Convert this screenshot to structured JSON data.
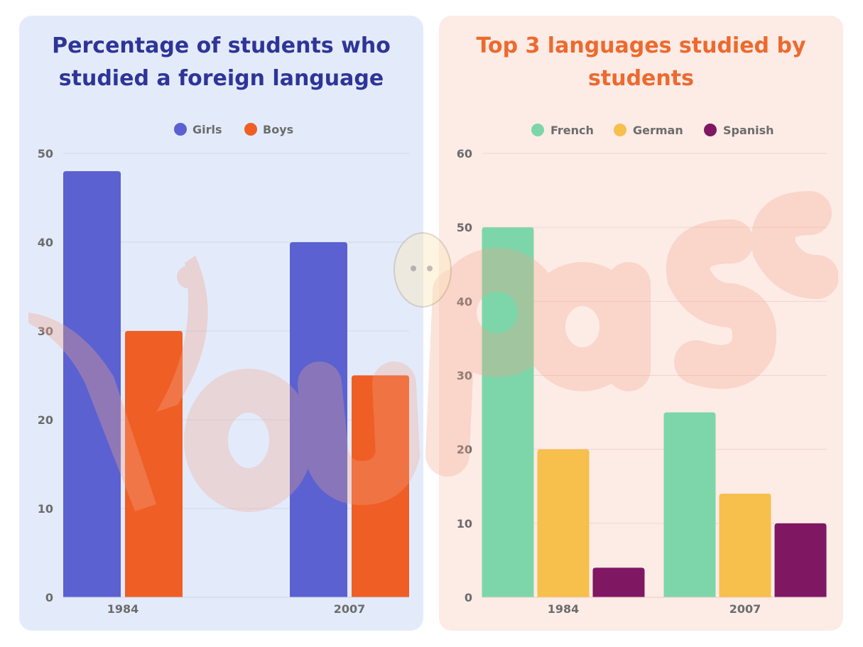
{
  "chart_data": [
    {
      "type": "bar",
      "title": "Percentage of students who studied a foreign language",
      "categories": [
        "1984",
        "2007"
      ],
      "series": [
        {
          "name": "Girls",
          "values": [
            48,
            40
          ],
          "color": "#5b61d0"
        },
        {
          "name": "Boys",
          "values": [
            30,
            25
          ],
          "color": "#ef5e25"
        }
      ],
      "yticks": [
        0,
        10,
        20,
        30,
        40,
        50
      ],
      "ylim": [
        0,
        50
      ],
      "grid": true,
      "legend": "top-center",
      "title_color": "#2f3597",
      "panel_color": "#e3ebfb"
    },
    {
      "type": "bar",
      "title": "Top 3 languages studied by students",
      "categories": [
        "1984",
        "2007"
      ],
      "series": [
        {
          "name": "French",
          "values": [
            50,
            25
          ],
          "color": "#7dd6a9"
        },
        {
          "name": "German",
          "values": [
            20,
            14
          ],
          "color": "#f7bf4b"
        },
        {
          "name": "Spanish",
          "values": [
            4,
            10
          ],
          "color": "#7f1763"
        }
      ],
      "yticks": [
        0,
        10,
        20,
        30,
        40,
        50,
        60
      ],
      "ylim": [
        0,
        60
      ],
      "grid": true,
      "legend": "top-center",
      "title_color": "#ec6a2e",
      "panel_color": "#fdebe6"
    }
  ],
  "watermark": {
    "text": "Youpass",
    "color": "#f4a48a"
  }
}
